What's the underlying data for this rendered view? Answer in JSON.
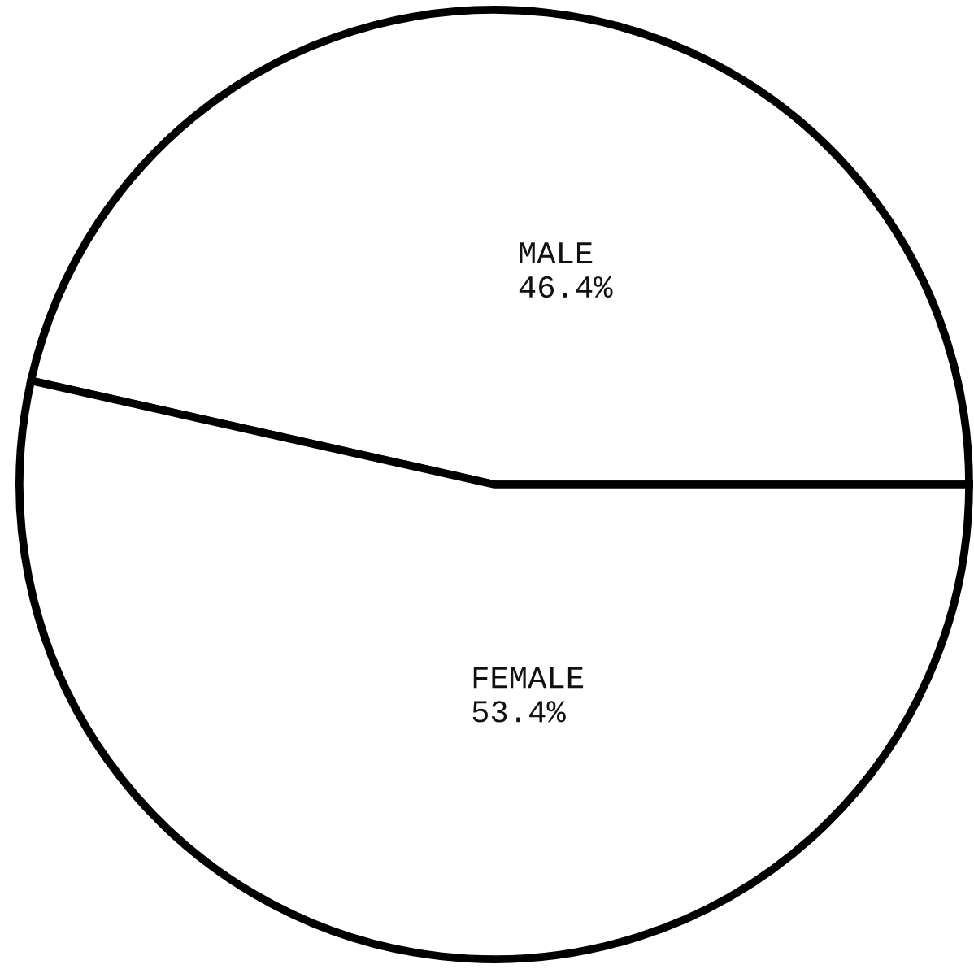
{
  "chart_data": {
    "type": "pie",
    "categories": [
      "MALE",
      "FEMALE"
    ],
    "values": [
      46.4,
      53.4
    ],
    "colors": [
      "#ffffff",
      "#ffffff"
    ],
    "value_labels": [
      "46.4%",
      "53.4%"
    ]
  }
}
